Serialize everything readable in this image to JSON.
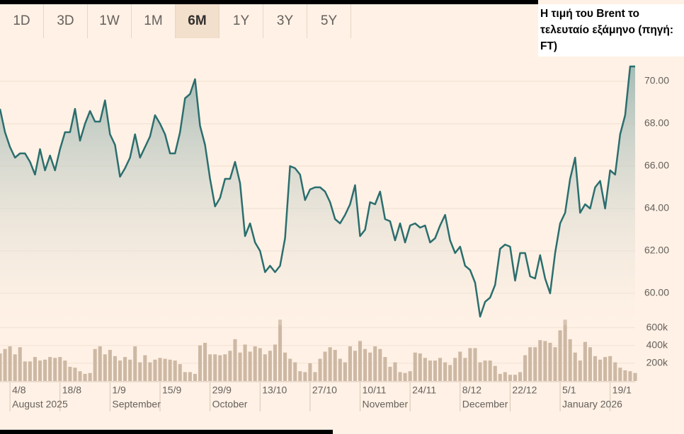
{
  "tabs": {
    "items": [
      "1D",
      "3D",
      "1W",
      "1M",
      "6M",
      "1Y",
      "3Y",
      "5Y"
    ],
    "selected_index": 4
  },
  "caption": "Η τιμή του Brent το τελευταίο εξάμηνο (πηγή: FT)",
  "chart_data": {
    "type": "area",
    "color": "#2b6e6e",
    "grid": true,
    "x": [
      "2025-07-31",
      "2025-08-01",
      "2025-08-04",
      "2025-08-05",
      "2025-08-06",
      "2025-08-07",
      "2025-08-08",
      "2025-08-11",
      "2025-08-12",
      "2025-08-13",
      "2025-08-14",
      "2025-08-15",
      "2025-08-18",
      "2025-08-19",
      "2025-08-20",
      "2025-08-21",
      "2025-08-22",
      "2025-08-25",
      "2025-08-26",
      "2025-08-27",
      "2025-08-28",
      "2025-08-29",
      "2025-09-01",
      "2025-09-02",
      "2025-09-03",
      "2025-09-04",
      "2025-09-05",
      "2025-09-08",
      "2025-09-09",
      "2025-09-10",
      "2025-09-11",
      "2025-09-12",
      "2025-09-15",
      "2025-09-16",
      "2025-09-17",
      "2025-09-18",
      "2025-09-19",
      "2025-09-22",
      "2025-09-23",
      "2025-09-24",
      "2025-09-25",
      "2025-09-26",
      "2025-09-29",
      "2025-09-30",
      "2025-10-01",
      "2025-10-02",
      "2025-10-03",
      "2025-10-06",
      "2025-10-07",
      "2025-10-08",
      "2025-10-09",
      "2025-10-10",
      "2025-10-13",
      "2025-10-14",
      "2025-10-15",
      "2025-10-16",
      "2025-10-17",
      "2025-10-20",
      "2025-10-21",
      "2025-10-22",
      "2025-10-23",
      "2025-10-24",
      "2025-10-27",
      "2025-10-28",
      "2025-10-29",
      "2025-10-30",
      "2025-10-31",
      "2025-11-03",
      "2025-11-04",
      "2025-11-05",
      "2025-11-06",
      "2025-11-07",
      "2025-11-10",
      "2025-11-11",
      "2025-11-12",
      "2025-11-13",
      "2025-11-14",
      "2025-11-17",
      "2025-11-18",
      "2025-11-19",
      "2025-11-20",
      "2025-11-21",
      "2025-11-24",
      "2025-11-25",
      "2025-11-26",
      "2025-11-27",
      "2025-11-28",
      "2025-12-01",
      "2025-12-02",
      "2025-12-03",
      "2025-12-04",
      "2025-12-05",
      "2025-12-08",
      "2025-12-09",
      "2025-12-10",
      "2025-12-11",
      "2025-12-12",
      "2025-12-15",
      "2025-12-16",
      "2025-12-17",
      "2025-12-18",
      "2025-12-19",
      "2025-12-22",
      "2025-12-23",
      "2025-12-24",
      "2025-12-25",
      "2025-12-26",
      "2025-12-29",
      "2025-12-30",
      "2025-12-31",
      "2026-01-01",
      "2026-01-02",
      "2026-01-05",
      "2026-01-06",
      "2026-01-07",
      "2026-01-08",
      "2026-01-09",
      "2026-01-12",
      "2026-01-13",
      "2026-01-14",
      "2026-01-15",
      "2026-01-16",
      "2026-01-19",
      "2026-01-20",
      "2026-01-21",
      "2026-01-22",
      "2026-01-23",
      "2026-01-26"
    ],
    "values": [
      68.7,
      67.6,
      66.9,
      66.4,
      66.6,
      66.6,
      66.2,
      65.6,
      66.8,
      65.8,
      66.5,
      65.8,
      66.8,
      67.6,
      67.6,
      68.7,
      67.2,
      68,
      68.6,
      68.1,
      68.1,
      69.1,
      67.5,
      67,
      65.5,
      65.9,
      66.4,
      67.5,
      66.4,
      66.9,
      67.4,
      68.4,
      68,
      67.5,
      66.6,
      66.6,
      67.6,
      69.2,
      69.4,
      70.1,
      67.9,
      67,
      65.4,
      64.1,
      64.5,
      65.4,
      65.4,
      66.2,
      65.2,
      62.7,
      63.3,
      62.4,
      62,
      61,
      61.3,
      61,
      61.3,
      62.6,
      66,
      65.9,
      65.6,
      64.4,
      64.9,
      65,
      65,
      64.8,
      64.3,
      63.5,
      63.3,
      63.7,
      64.2,
      65.1,
      62.7,
      63,
      64.3,
      64.2,
      64.8,
      63.5,
      63.4,
      62.5,
      63.3,
      62.4,
      63.2,
      63.3,
      63.1,
      63.2,
      62.4,
      62.6,
      63.2,
      63.7,
      62.5,
      61.9,
      62.2,
      61.3,
      61.1,
      60.5,
      58.9,
      59.6,
      59.8,
      60.4,
      62.1,
      62.3,
      62.2,
      60.6,
      61.9,
      61.9,
      60.8,
      60.7,
      61.8,
      60.7,
      60,
      61.9,
      63.3,
      63.8,
      65.4,
      66.4,
      63.8,
      64.2,
      64,
      65,
      65.3,
      64,
      65.8,
      65.6,
      67.5,
      68.4,
      70.7,
      70.7
    ],
    "ylim": [
      58.5,
      71
    ],
    "yticks": [
      {
        "value": 60,
        "label": "60.00"
      },
      {
        "value": 62,
        "label": "62.00"
      },
      {
        "value": 64,
        "label": "64.00"
      },
      {
        "value": 66,
        "label": "66.00"
      },
      {
        "value": 68,
        "label": "68.00"
      },
      {
        "value": 70,
        "label": "70.00"
      }
    ],
    "xticks": [
      {
        "value": "2025-08-04",
        "label": "4/8"
      },
      {
        "value": "2025-08-18",
        "label": "18/8"
      },
      {
        "value": "2025-09-01",
        "label": "1/9"
      },
      {
        "value": "2025-09-15",
        "label": "15/9"
      },
      {
        "value": "2025-09-29",
        "label": "29/9"
      },
      {
        "value": "2025-10-13",
        "label": "13/10"
      },
      {
        "value": "2025-10-27",
        "label": "27/10"
      },
      {
        "value": "2025-11-10",
        "label": "10/11"
      },
      {
        "value": "2025-11-24",
        "label": "24/11"
      },
      {
        "value": "2025-12-08",
        "label": "8/12"
      },
      {
        "value": "2025-12-22",
        "label": "22/12"
      },
      {
        "value": "2026-01-05",
        "label": "5/1"
      },
      {
        "value": "2026-01-19",
        "label": "19/1"
      }
    ],
    "xmonths": [
      {
        "value": "2025-08-04",
        "label": "August 2025"
      },
      {
        "value": "2025-09-01",
        "label": "September"
      },
      {
        "value": "2025-09-29",
        "label": "October"
      },
      {
        "value": "2025-11-10",
        "label": "November"
      },
      {
        "value": "2025-12-08",
        "label": "December"
      },
      {
        "value": "2026-01-05",
        "label": "January 2026"
      }
    ],
    "volume": {
      "color": "#cdb8a4",
      "values": [
        310000,
        360000,
        390000,
        300000,
        380000,
        220000,
        220000,
        270000,
        230000,
        240000,
        270000,
        260000,
        270000,
        230000,
        160000,
        150000,
        110000,
        80000,
        90000,
        360000,
        390000,
        300000,
        350000,
        280000,
        230000,
        270000,
        240000,
        390000,
        210000,
        290000,
        210000,
        240000,
        260000,
        250000,
        240000,
        230000,
        190000,
        100000,
        100000,
        80000,
        400000,
        430000,
        300000,
        300000,
        290000,
        300000,
        340000,
        470000,
        320000,
        410000,
        330000,
        390000,
        370000,
        300000,
        340000,
        410000,
        690000,
        320000,
        250000,
        210000,
        110000,
        100000,
        200000,
        100000,
        250000,
        330000,
        380000,
        350000,
        250000,
        210000,
        390000,
        340000,
        450000,
        360000,
        320000,
        390000,
        360000,
        270000,
        160000,
        210000,
        100000,
        90000,
        110000,
        320000,
        310000,
        260000,
        230000,
        230000,
        260000,
        210000,
        180000,
        260000,
        330000,
        260000,
        370000,
        370000,
        210000,
        230000,
        230000,
        170000,
        80000,
        100000,
        70000,
        70000,
        100000,
        290000,
        380000,
        380000,
        460000,
        450000,
        430000,
        380000,
        570000,
        690000,
        470000,
        320000,
        230000,
        440000,
        380000,
        280000,
        240000,
        270000,
        280000,
        210000,
        150000,
        120000,
        110000,
        90000
      ],
      "ylim": [
        0,
        700000
      ],
      "yticks": [
        {
          "value": 200000,
          "label": "200k"
        },
        {
          "value": 400000,
          "label": "400k"
        },
        {
          "value": 600000,
          "label": "600k"
        }
      ]
    }
  }
}
